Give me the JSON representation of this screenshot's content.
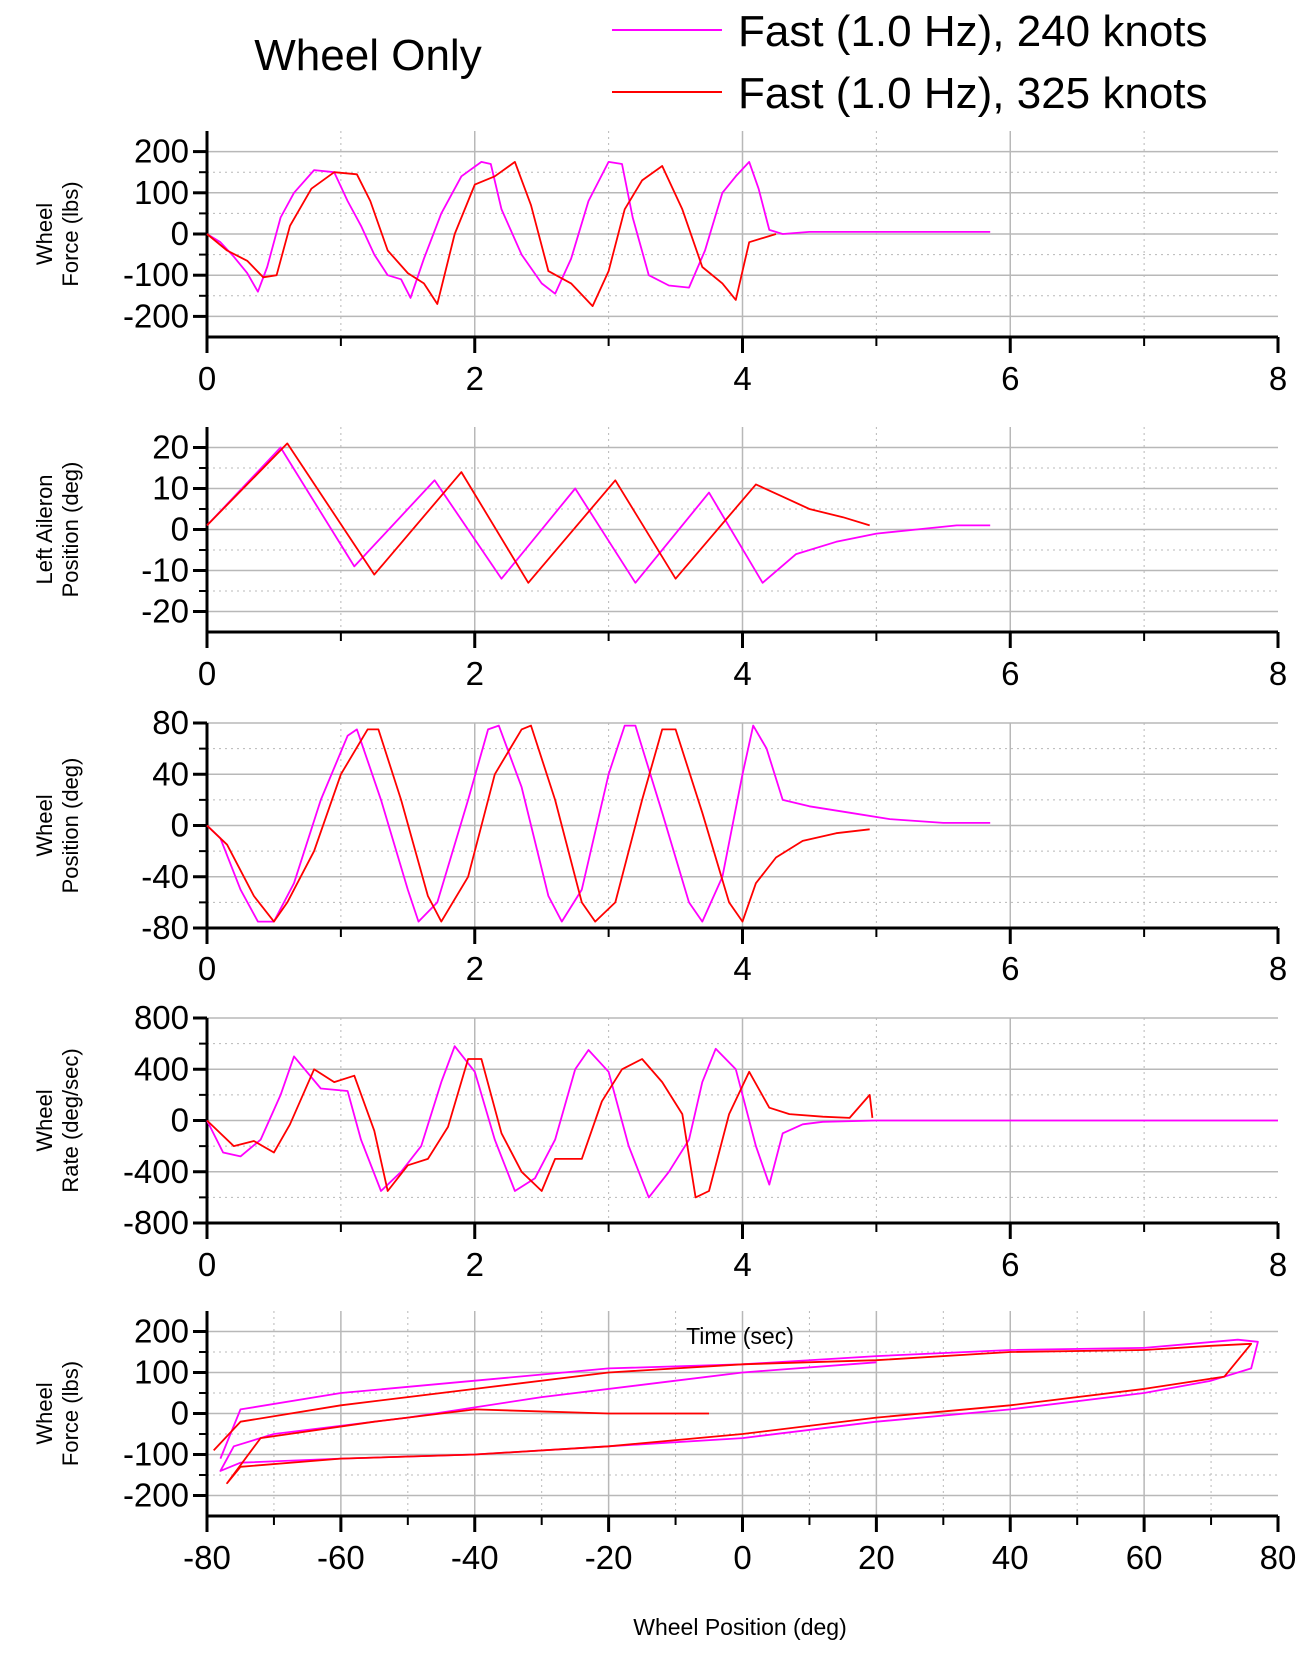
{
  "title": "Wheel Only",
  "legend": [
    {
      "label": "Fast (1.0 Hz), 240 knots",
      "color": "#ff00ff"
    },
    {
      "label": "Fast (1.0 Hz), 325 knots",
      "color": "#ff0000"
    }
  ],
  "labels": {
    "time_axis": "Time (sec)",
    "wheel_position_axis": "Wheel Position (deg)"
  },
  "chart_data": [
    {
      "type": "line",
      "ylabel": [
        "Wheel",
        "Force (lbs)"
      ],
      "xlim": [
        0,
        8
      ],
      "ylim": [
        -250,
        250
      ],
      "xticks": [
        "0",
        "2",
        "4",
        "6",
        "8"
      ],
      "yticks": [
        "200",
        "100",
        "0",
        "-100",
        "-200"
      ],
      "grid": true,
      "series": [
        {
          "name": "Fast (1.0 Hz), 240 knots",
          "color": "#ff00ff",
          "x": [
            0,
            0.1,
            0.2,
            0.3,
            0.38,
            0.45,
            0.55,
            0.65,
            0.8,
            0.95,
            1.05,
            1.15,
            1.25,
            1.35,
            1.45,
            1.52,
            1.62,
            1.75,
            1.9,
            2.05,
            2.12,
            2.2,
            2.35,
            2.5,
            2.6,
            2.72,
            2.85,
            3.0,
            3.1,
            3.18,
            3.3,
            3.45,
            3.6,
            3.72,
            3.85,
            3.95,
            4.05,
            4.12,
            4.2,
            4.3,
            4.5,
            5.0,
            5.5,
            5.85
          ],
          "y": [
            0,
            -20,
            -55,
            -95,
            -140,
            -80,
            40,
            100,
            155,
            150,
            80,
            20,
            -50,
            -100,
            -110,
            -155,
            -60,
            50,
            140,
            175,
            170,
            60,
            -50,
            -120,
            -145,
            -60,
            80,
            175,
            170,
            40,
            -100,
            -125,
            -130,
            -40,
            100,
            140,
            175,
            110,
            10,
            0,
            5,
            5,
            5,
            5
          ]
        },
        {
          "name": "Fast (1.0 Hz), 325 knots",
          "color": "#ff0000",
          "x": [
            0,
            0.15,
            0.3,
            0.42,
            0.52,
            0.62,
            0.78,
            0.95,
            1.12,
            1.22,
            1.35,
            1.5,
            1.62,
            1.72,
            1.85,
            2.0,
            2.15,
            2.3,
            2.42,
            2.55,
            2.72,
            2.88,
            3.0,
            3.12,
            3.25,
            3.4,
            3.55,
            3.7,
            3.85,
            3.95,
            4.05,
            4.25
          ],
          "y": [
            0,
            -40,
            -65,
            -105,
            -100,
            20,
            110,
            150,
            145,
            80,
            -40,
            -95,
            -120,
            -170,
            0,
            120,
            140,
            175,
            70,
            -90,
            -120,
            -175,
            -90,
            60,
            130,
            165,
            60,
            -80,
            -120,
            -160,
            -20,
            0
          ]
        }
      ]
    },
    {
      "type": "line",
      "ylabel": [
        "Left Aileron",
        "Position (deg)"
      ],
      "xlim": [
        0,
        8
      ],
      "ylim": [
        -25,
        25
      ],
      "xticks": [
        "0",
        "2",
        "4",
        "6",
        "8"
      ],
      "yticks": [
        "20",
        "10",
        "0",
        "-10",
        "-20"
      ],
      "grid": true,
      "series": [
        {
          "name": "Fast (1.0 Hz), 240 knots",
          "color": "#ff00ff",
          "x": [
            0,
            0.55,
            1.1,
            1.7,
            2.2,
            2.75,
            3.2,
            3.75,
            4.15,
            4.4,
            4.7,
            5.0,
            5.3,
            5.6,
            5.85
          ],
          "y": [
            1,
            20,
            -9,
            12,
            -12,
            10,
            -13,
            9,
            -13,
            -6,
            -3,
            -1,
            0,
            1,
            1
          ]
        },
        {
          "name": "Fast (1.0 Hz), 325 knots",
          "color": "#ff0000",
          "x": [
            0,
            0.6,
            1.25,
            1.9,
            2.4,
            3.05,
            3.5,
            4.1,
            4.3,
            4.5,
            4.75,
            4.95
          ],
          "y": [
            1,
            21,
            -11,
            14,
            -13,
            12,
            -12,
            11,
            8,
            5,
            3,
            1
          ]
        }
      ]
    },
    {
      "type": "line",
      "ylabel": [
        "Wheel",
        "Position (deg)"
      ],
      "xlim": [
        0,
        8
      ],
      "ylim": [
        -80,
        80
      ],
      "xticks": [
        "0",
        "2",
        "4",
        "6",
        "8"
      ],
      "yticks": [
        "80",
        "40",
        "0",
        "-40",
        "-80"
      ],
      "grid": true,
      "series": [
        {
          "name": "Fast (1.0 Hz), 240 knots",
          "color": "#ff00ff",
          "x": [
            0,
            0.1,
            0.25,
            0.38,
            0.5,
            0.65,
            0.85,
            1.05,
            1.12,
            1.3,
            1.5,
            1.58,
            1.72,
            1.95,
            2.1,
            2.18,
            2.35,
            2.55,
            2.65,
            2.8,
            3.0,
            3.12,
            3.2,
            3.4,
            3.6,
            3.7,
            3.85,
            4.0,
            4.08,
            4.18,
            4.3,
            4.5,
            4.8,
            5.1,
            5.5,
            5.85
          ],
          "y": [
            0,
            -10,
            -50,
            -75,
            -75,
            -45,
            20,
            70,
            75,
            20,
            -50,
            -75,
            -60,
            20,
            75,
            78,
            30,
            -55,
            -75,
            -50,
            40,
            78,
            78,
            10,
            -60,
            -75,
            -40,
            40,
            78,
            60,
            20,
            15,
            10,
            5,
            2,
            2
          ]
        },
        {
          "name": "Fast (1.0 Hz), 325 knots",
          "color": "#ff0000",
          "x": [
            0,
            0.15,
            0.35,
            0.5,
            0.6,
            0.8,
            1.0,
            1.2,
            1.28,
            1.45,
            1.65,
            1.75,
            1.95,
            2.15,
            2.35,
            2.42,
            2.6,
            2.8,
            2.9,
            3.05,
            3.25,
            3.4,
            3.5,
            3.7,
            3.9,
            4.0,
            4.1,
            4.25,
            4.45,
            4.7,
            4.95
          ],
          "y": [
            0,
            -15,
            -55,
            -75,
            -60,
            -20,
            40,
            75,
            75,
            20,
            -55,
            -75,
            -40,
            40,
            75,
            78,
            20,
            -60,
            -75,
            -60,
            20,
            75,
            75,
            10,
            -60,
            -75,
            -45,
            -25,
            -12,
            -6,
            -3
          ]
        }
      ]
    },
    {
      "type": "line",
      "ylabel": [
        "Wheel",
        "Rate (deg/sec)"
      ],
      "xlim": [
        0,
        8
      ],
      "ylim": [
        -800,
        800
      ],
      "xticks": [
        "0",
        "2",
        "4",
        "6",
        "8"
      ],
      "yticks": [
        "800",
        "400",
        "0",
        "-400",
        "-800"
      ],
      "grid": true,
      "series": [
        {
          "name": "Fast (1.0 Hz), 240 knots",
          "color": "#ff00ff",
          "x": [
            0,
            0.12,
            0.25,
            0.4,
            0.55,
            0.65,
            0.85,
            1.05,
            1.15,
            1.3,
            1.45,
            1.6,
            1.75,
            1.85,
            2.0,
            2.15,
            2.3,
            2.45,
            2.6,
            2.75,
            2.85,
            3.0,
            3.15,
            3.3,
            3.45,
            3.6,
            3.7,
            3.8,
            3.95,
            4.1,
            4.2,
            4.3,
            4.45,
            4.6,
            5.0,
            5.5,
            6.0,
            7.0,
            8.0
          ],
          "y": [
            0,
            -250,
            -280,
            -150,
            200,
            500,
            250,
            230,
            -150,
            -550,
            -400,
            -200,
            300,
            580,
            380,
            -150,
            -550,
            -450,
            -150,
            400,
            550,
            380,
            -200,
            -600,
            -400,
            -150,
            300,
            560,
            400,
            -200,
            -500,
            -100,
            -30,
            -10,
            0,
            0,
            0,
            0,
            0
          ]
        },
        {
          "name": "Fast (1.0 Hz), 325 knots",
          "color": "#ff0000",
          "x": [
            0,
            0.2,
            0.35,
            0.5,
            0.62,
            0.8,
            0.95,
            1.1,
            1.25,
            1.35,
            1.5,
            1.65,
            1.8,
            1.95,
            2.05,
            2.2,
            2.35,
            2.5,
            2.6,
            2.8,
            2.95,
            3.1,
            3.25,
            3.4,
            3.55,
            3.65,
            3.75,
            3.9,
            4.05,
            4.2,
            4.35,
            4.6,
            4.8,
            4.95,
            4.97
          ],
          "y": [
            0,
            -200,
            -160,
            -250,
            -30,
            400,
            300,
            350,
            -80,
            -550,
            -350,
            -300,
            -50,
            480,
            480,
            -100,
            -400,
            -550,
            -300,
            -300,
            150,
            400,
            480,
            300,
            50,
            -600,
            -550,
            50,
            380,
            100,
            50,
            30,
            20,
            200,
            20
          ]
        }
      ]
    },
    {
      "type": "line",
      "ylabel": [
        "Wheel",
        "Force (lbs)"
      ],
      "xlim": [
        -80,
        80
      ],
      "ylim": [
        -250,
        250
      ],
      "xticks": [
        "-80",
        "-60",
        "-40",
        "-20",
        "0",
        "20",
        "40",
        "60",
        "80"
      ],
      "yticks": [
        "200",
        "100",
        "0",
        "-100",
        "-200"
      ],
      "grid": true,
      "series": [
        {
          "name": "Fast (1.0 Hz), 240 knots",
          "color": "#ff00ff",
          "x": [
            -78,
            -75,
            -60,
            -40,
            -20,
            0,
            20,
            40,
            60,
            74,
            77,
            76,
            70,
            60,
            40,
            20,
            0,
            -20,
            -40,
            -60,
            -75,
            -78,
            -76,
            -70,
            -50,
            -30,
            -10,
            0,
            20
          ],
          "y": [
            -110,
            10,
            50,
            80,
            110,
            120,
            140,
            155,
            160,
            180,
            175,
            110,
            80,
            50,
            10,
            -20,
            -60,
            -80,
            -100,
            -110,
            -120,
            -140,
            -80,
            -50,
            -10,
            40,
            80,
            100,
            125
          ]
        },
        {
          "name": "Fast (1.0 Hz), 325 knots",
          "color": "#ff0000",
          "x": [
            -79,
            -75,
            -60,
            -40,
            -20,
            0,
            20,
            40,
            60,
            70,
            76,
            72,
            60,
            40,
            20,
            0,
            -20,
            -40,
            -60,
            -75,
            -77,
            -72,
            -55,
            -40,
            -20,
            -5
          ],
          "y": [
            -90,
            -20,
            20,
            60,
            100,
            120,
            130,
            150,
            155,
            165,
            170,
            90,
            60,
            20,
            -10,
            -50,
            -80,
            -100,
            -110,
            -130,
            -170,
            -60,
            -20,
            10,
            0,
            0
          ]
        }
      ]
    }
  ]
}
